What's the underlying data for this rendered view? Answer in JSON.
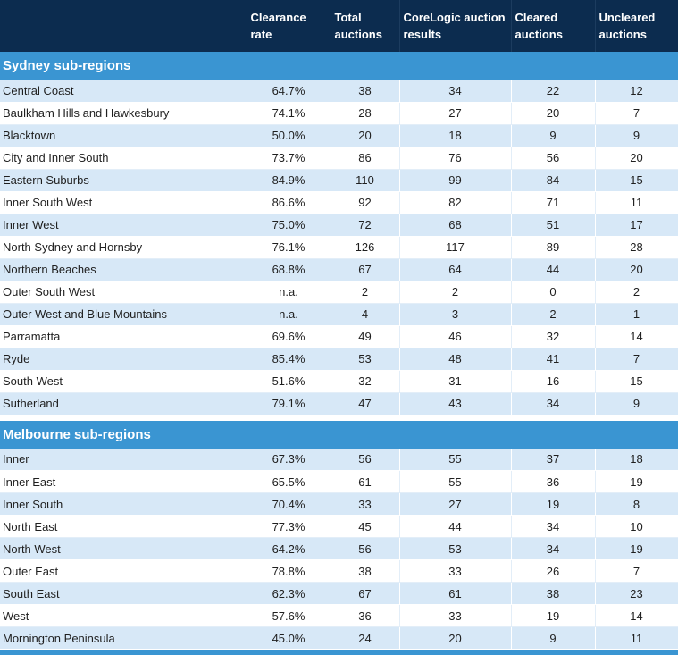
{
  "headers": [
    "",
    "Clearance rate",
    "Total auctions",
    "CoreLogic auction results",
    "Cleared auctions",
    "Uncleared auctions"
  ],
  "sections": [
    {
      "title": "Sydney sub-regions",
      "rows": [
        [
          "Central Coast",
          "64.7%",
          "38",
          "34",
          "22",
          "12"
        ],
        [
          "Baulkham Hills and Hawkesbury",
          "74.1%",
          "28",
          "27",
          "20",
          "7"
        ],
        [
          "Blacktown",
          "50.0%",
          "20",
          "18",
          "9",
          "9"
        ],
        [
          "City and Inner South",
          "73.7%",
          "86",
          "76",
          "56",
          "20"
        ],
        [
          "Eastern Suburbs",
          "84.9%",
          "110",
          "99",
          "84",
          "15"
        ],
        [
          "Inner South West",
          "86.6%",
          "92",
          "82",
          "71",
          "11"
        ],
        [
          "Inner West",
          "75.0%",
          "72",
          "68",
          "51",
          "17"
        ],
        [
          "North Sydney and Hornsby",
          "76.1%",
          "126",
          "117",
          "89",
          "28"
        ],
        [
          "Northern Beaches",
          "68.8%",
          "67",
          "64",
          "44",
          "20"
        ],
        [
          "Outer South West",
          "n.a.",
          "2",
          "2",
          "0",
          "2"
        ],
        [
          "Outer West and Blue Mountains",
          "n.a.",
          "4",
          "3",
          "2",
          "1"
        ],
        [
          "Parramatta",
          "69.6%",
          "49",
          "46",
          "32",
          "14"
        ],
        [
          "Ryde",
          "85.4%",
          "53",
          "48",
          "41",
          "7"
        ],
        [
          "South West",
          "51.6%",
          "32",
          "31",
          "16",
          "15"
        ],
        [
          "Sutherland",
          "79.1%",
          "47",
          "43",
          "34",
          "9"
        ]
      ]
    },
    {
      "title": "Melbourne sub-regions",
      "rows": [
        [
          "Inner",
          "67.3%",
          "56",
          "55",
          "37",
          "18"
        ],
        [
          "Inner East",
          "65.5%",
          "61",
          "55",
          "36",
          "19"
        ],
        [
          "Inner South",
          "70.4%",
          "33",
          "27",
          "19",
          "8"
        ],
        [
          "North East",
          "77.3%",
          "45",
          "44",
          "34",
          "10"
        ],
        [
          "North West",
          "64.2%",
          "56",
          "53",
          "34",
          "19"
        ],
        [
          "Outer East",
          "78.8%",
          "38",
          "33",
          "26",
          "7"
        ],
        [
          "South East",
          "62.3%",
          "67",
          "61",
          "38",
          "23"
        ],
        [
          "West",
          "57.6%",
          "36",
          "33",
          "19",
          "14"
        ],
        [
          "Mornington Peninsula",
          "45.0%",
          "24",
          "20",
          "9",
          "11"
        ]
      ]
    }
  ],
  "colors": {
    "header_bg": "#0c2c4f",
    "section_bg": "#3a95d2",
    "stripe": "#d7e8f7"
  }
}
